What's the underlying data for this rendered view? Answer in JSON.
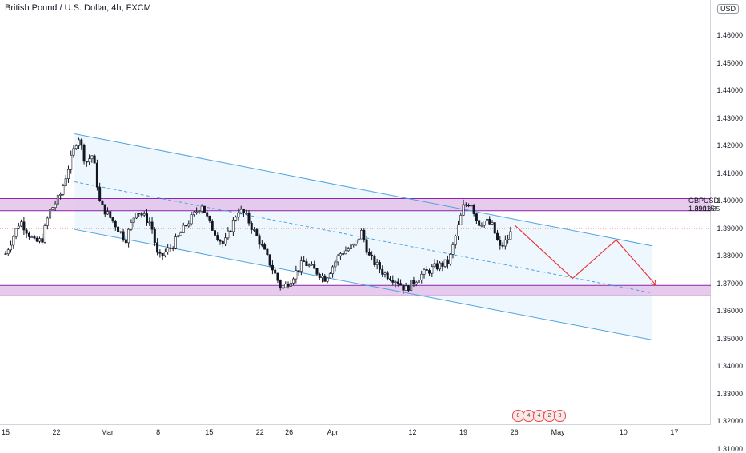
{
  "chart_data": {
    "type": "candlestick",
    "title": "British Pound / U.S. Dollar, 4h, FXCM",
    "symbol": "GBPUSD",
    "last_price": "1.39015",
    "countdown": "01:18:35",
    "currency": "USD",
    "y_ticks": [
      "1.46000",
      "1.45000",
      "1.44000",
      "1.43000",
      "1.42000",
      "1.41000",
      "1.40000",
      "1.39000",
      "1.38000",
      "1.37000",
      "1.36000",
      "1.35000",
      "1.34000",
      "1.33000",
      "1.32000",
      "1.31000"
    ],
    "ylim": [
      1.307,
      1.464
    ],
    "x_ticks": [
      {
        "label": "15",
        "day": 0
      },
      {
        "label": "22",
        "day": 7
      },
      {
        "label": "Mar",
        "day": 14
      },
      {
        "label": "8",
        "day": 21
      },
      {
        "label": "15",
        "day": 28
      },
      {
        "label": "22",
        "day": 35
      },
      {
        "label": "26",
        "day": 39
      },
      {
        "label": "Apr",
        "day": 45
      },
      {
        "label": "12",
        "day": 56
      },
      {
        "label": "19",
        "day": 63
      },
      {
        "label": "26",
        "day": 70
      },
      {
        "label": "May",
        "day": 76
      },
      {
        "label": "10",
        "day": 85
      },
      {
        "label": "17",
        "day": 92
      }
    ],
    "price_path": [
      {
        "day": 0,
        "price": 1.381
      },
      {
        "day": 2,
        "price": 1.393
      },
      {
        "day": 4,
        "price": 1.385
      },
      {
        "day": 5,
        "price": 1.386
      },
      {
        "day": 6,
        "price": 1.396
      },
      {
        "day": 7.5,
        "price": 1.402
      },
      {
        "day": 8.5,
        "price": 1.411
      },
      {
        "day": 10,
        "price": 1.424
      },
      {
        "day": 11,
        "price": 1.414
      },
      {
        "day": 12,
        "price": 1.417
      },
      {
        "day": 13,
        "price": 1.399
      },
      {
        "day": 15,
        "price": 1.392
      },
      {
        "day": 16.5,
        "price": 1.386
      },
      {
        "day": 18,
        "price": 1.397
      },
      {
        "day": 20,
        "price": 1.392
      },
      {
        "day": 21,
        "price": 1.379
      },
      {
        "day": 23,
        "price": 1.384
      },
      {
        "day": 25,
        "price": 1.392
      },
      {
        "day": 27,
        "price": 1.399
      },
      {
        "day": 28,
        "price": 1.392
      },
      {
        "day": 30,
        "price": 1.384
      },
      {
        "day": 32,
        "price": 1.397
      },
      {
        "day": 33,
        "price": 1.395
      },
      {
        "day": 35,
        "price": 1.385
      },
      {
        "day": 37,
        "price": 1.374
      },
      {
        "day": 38,
        "price": 1.368
      },
      {
        "day": 39,
        "price": 1.371
      },
      {
        "day": 41,
        "price": 1.378
      },
      {
        "day": 43,
        "price": 1.374
      },
      {
        "day": 44,
        "price": 1.372
      },
      {
        "day": 46,
        "price": 1.381
      },
      {
        "day": 48,
        "price": 1.384
      },
      {
        "day": 49,
        "price": 1.389
      },
      {
        "day": 50,
        "price": 1.38
      },
      {
        "day": 52,
        "price": 1.374
      },
      {
        "day": 54,
        "price": 1.371
      },
      {
        "day": 55,
        "price": 1.368
      },
      {
        "day": 57,
        "price": 1.373
      },
      {
        "day": 59,
        "price": 1.376
      },
      {
        "day": 61,
        "price": 1.378
      },
      {
        "day": 62,
        "price": 1.388
      },
      {
        "day": 63,
        "price": 1.398
      },
      {
        "day": 64,
        "price": 1.4
      },
      {
        "day": 65,
        "price": 1.392
      },
      {
        "day": 66,
        "price": 1.393
      },
      {
        "day": 67,
        "price": 1.391
      },
      {
        "day": 68,
        "price": 1.383
      },
      {
        "day": 69,
        "price": 1.386
      },
      {
        "day": 69.8,
        "price": 1.39
      }
    ],
    "zones": [
      {
        "from": 1.3966,
        "to": 1.401,
        "color": "#e1bee7"
      },
      {
        "from": 1.3657,
        "to": 1.3695,
        "color": "#e1bee7"
      }
    ],
    "channel": {
      "upper": [
        [
          9.5,
          1.4245
        ],
        [
          89,
          1.3838
        ]
      ],
      "lower": [
        [
          9.5,
          1.3898
        ],
        [
          89,
          1.3497
        ]
      ],
      "mid": [
        [
          9.5,
          1.4071
        ],
        [
          89,
          1.3667
        ]
      ],
      "line_color": "#4fa3e0",
      "fill_color": "#eaf4fd"
    },
    "projection": {
      "points": [
        [
          70,
          1.3915
        ],
        [
          78,
          1.372
        ],
        [
          84,
          1.386
        ],
        [
          89.5,
          1.3695
        ]
      ],
      "color": "#e53935"
    },
    "events": [
      "8",
      "4",
      "4",
      "2",
      "3"
    ]
  }
}
